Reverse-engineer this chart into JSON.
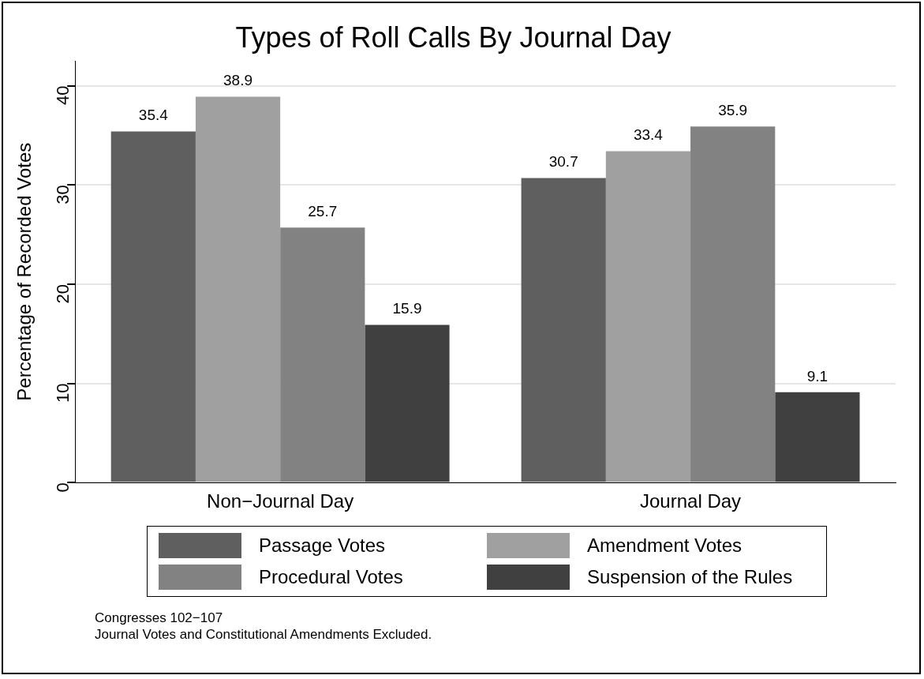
{
  "chart_data": {
    "type": "bar",
    "title": "Types of Roll Calls By Journal Day",
    "ylabel": "Percentage of Recorded Votes",
    "categories": [
      "Non−Journal Day",
      "Journal Day"
    ],
    "series": [
      {
        "name": "Passage Votes",
        "color": "#5f5f5f",
        "values": [
          35.4,
          30.7
        ]
      },
      {
        "name": "Amendment Votes",
        "color": "#a0a0a0",
        "values": [
          38.9,
          33.4
        ]
      },
      {
        "name": "Procedural Votes",
        "color": "#828282",
        "values": [
          25.7,
          35.9
        ]
      },
      {
        "name": "Suspension of the Rules",
        "color": "#404040",
        "values": [
          15.9,
          9.1
        ]
      }
    ],
    "ylim": [
      0,
      42.5
    ],
    "yticks": [
      0,
      10,
      20,
      30,
      40
    ],
    "grid": "y",
    "legend": "bottom",
    "data_labels": true,
    "annotations": [
      "Congresses 102−107",
      "Journal Votes and Constitutional Amendments Excluded."
    ]
  }
}
